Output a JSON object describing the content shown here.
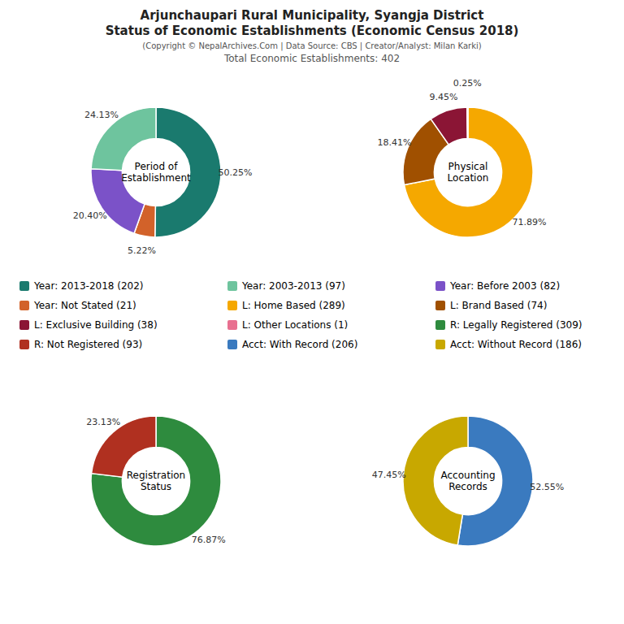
{
  "title": "Arjunchaupari Rural Municipality, Syangja District",
  "subtitle": "Status of Economic Establishments (Economic Census 2018)",
  "annotations": [
    "(Copyright © NepalArchives.Com | Data Source: CBS | Creator/Analyst: Milan Karki)",
    "Total Economic Establishments: 402"
  ],
  "series": [
    {
      "name": "Year: 2013-2018 (202)",
      "color": "#1a7a6e"
    },
    {
      "name": "Year: 2003-2013 (97)",
      "color": "#6ec49e"
    },
    {
      "name": "Year: Before 2003 (82)",
      "color": "#7b52c8"
    },
    {
      "name": "Year: Not Stated (21)",
      "color": "#d2622a"
    },
    {
      "name": "L: Home Based (289)",
      "color": "#f5a800"
    },
    {
      "name": "L: Brand Based (74)",
      "color": "#a05000"
    },
    {
      "name": "L: Exclusive Building (38)",
      "color": "#8b1535"
    },
    {
      "name": "L: Other Locations (1)",
      "color": "#e87090"
    },
    {
      "name": "R: Legally Registered (309)",
      "color": "#2e8b3e"
    },
    {
      "name": "R: Not Registered (93)",
      "color": "#b03020"
    },
    {
      "name": "Acct: With Record (206)",
      "color": "#3a7abf"
    },
    {
      "name": "Acct: Without Record (186)",
      "color": "#c8a800"
    }
  ],
  "chart_data": [
    {
      "type": "pie",
      "title": "Period of\nEstablishment",
      "values": [
        50.25,
        5.22,
        20.4,
        24.13
      ],
      "value_labels": [
        "50.25%",
        "5.22%",
        "20.40%",
        "24.13%"
      ],
      "colors": [
        "#1a7a6e",
        "#d2622a",
        "#7b52c8",
        "#6ec49e"
      ],
      "data_labels": true
    },
    {
      "type": "pie",
      "title": "Physical\nLocation",
      "values": [
        71.89,
        18.41,
        9.45,
        0.25
      ],
      "value_labels": [
        "71.89%",
        "18.41%",
        "9.45%",
        "0.25%"
      ],
      "colors": [
        "#f5a800",
        "#a05000",
        "#8b1535",
        "#f0d040"
      ],
      "data_labels": true
    },
    {
      "type": "pie",
      "title": "Registration\nStatus",
      "values": [
        76.87,
        23.13
      ],
      "value_labels": [
        "76.87%",
        "23.13%"
      ],
      "colors": [
        "#2e8b3e",
        "#b03020"
      ],
      "data_labels": true
    },
    {
      "type": "pie",
      "title": "Accounting\nRecords",
      "values": [
        52.55,
        47.45
      ],
      "value_labels": [
        "52.55%",
        "47.45%"
      ],
      "colors": [
        "#3a7abf",
        "#c8a800"
      ],
      "data_labels": true
    }
  ]
}
